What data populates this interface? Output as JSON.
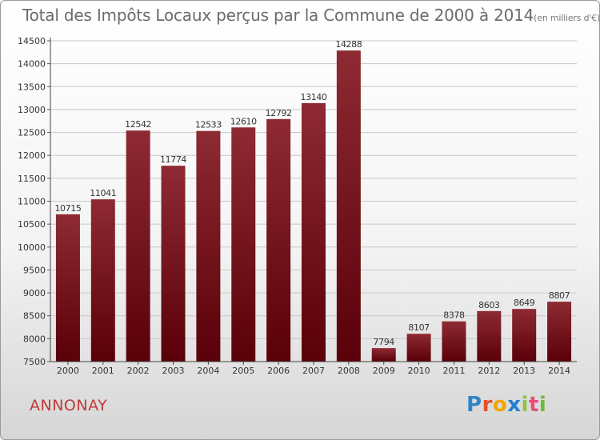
{
  "title": {
    "main": "Total des Impôts Locaux perçus par la Commune de 2000 à 2014",
    "unit": "(en milliers d'€)"
  },
  "commune": "ANNONAY",
  "logo": {
    "text": "Proxiti",
    "letter_colors": [
      "#2e86c8",
      "#e8502a",
      "#f0a500",
      "#1f7fd0",
      "#8dc63f",
      "#e94e77",
      "#6cbb3c"
    ]
  },
  "colors": {
    "bar_top": "#8e2a33",
    "bar_bottom": "#5a0008",
    "commune": "#c0393b"
  },
  "chart_data": {
    "type": "bar",
    "categories": [
      "2000",
      "2001",
      "2002",
      "2003",
      "2004",
      "2005",
      "2006",
      "2007",
      "2008",
      "2009",
      "2010",
      "2011",
      "2012",
      "2013",
      "2014"
    ],
    "values": [
      10715,
      11041,
      12542,
      11774,
      12533,
      12610,
      12792,
      13140,
      14288,
      7794,
      8107,
      8378,
      8603,
      8649,
      8807
    ],
    "ylim": [
      7500,
      14500
    ],
    "yticks": [
      7500,
      8000,
      8500,
      9000,
      9500,
      10000,
      10500,
      11000,
      11500,
      12000,
      12500,
      13000,
      13500,
      14000,
      14500
    ],
    "grid": true
  }
}
